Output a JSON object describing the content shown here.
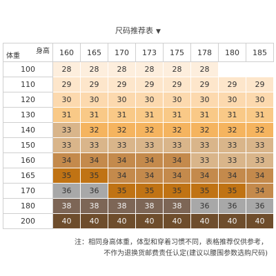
{
  "title": "尺码推荐表",
  "title_arrow": "▼",
  "corner": {
    "height_label": "身高",
    "weight_label": "体重"
  },
  "heights": [
    "160",
    "165",
    "170",
    "173",
    "175",
    "178",
    "180",
    "185"
  ],
  "rows": [
    {
      "weight": "100",
      "cells": [
        "28",
        "28",
        "28",
        "28",
        "28",
        "28",
        "",
        ""
      ]
    },
    {
      "weight": "110",
      "cells": [
        "29",
        "29",
        "29",
        "29",
        "29",
        "29",
        "29",
        "29"
      ]
    },
    {
      "weight": "120",
      "cells": [
        "30",
        "30",
        "30",
        "30",
        "30",
        "30",
        "30",
        "30"
      ]
    },
    {
      "weight": "130",
      "cells": [
        "31",
        "31",
        "31",
        "31",
        "31",
        "31",
        "31",
        "31"
      ]
    },
    {
      "weight": "140",
      "cells": [
        "33",
        "32",
        "32",
        "32",
        "32",
        "32",
        "32",
        "32"
      ]
    },
    {
      "weight": "150",
      "cells": [
        "33",
        "33",
        "33",
        "33",
        "33",
        "33",
        "33",
        "33"
      ]
    },
    {
      "weight": "160",
      "cells": [
        "34",
        "34",
        "34",
        "34",
        "34",
        "33",
        "33",
        "33"
      ]
    },
    {
      "weight": "165",
      "cells": [
        "35",
        "35",
        "34",
        "34",
        "34",
        "34",
        "34",
        "34"
      ]
    },
    {
      "weight": "170",
      "cells": [
        "36",
        "36",
        "35",
        "35",
        "35",
        "35",
        "35",
        "34"
      ]
    },
    {
      "weight": "180",
      "cells": [
        "38",
        "38",
        "38",
        "38",
        "38",
        "36",
        "36",
        "36"
      ]
    },
    {
      "weight": "200",
      "cells": [
        "40",
        "40",
        "40",
        "40",
        "40",
        "40",
        "40",
        "40"
      ]
    }
  ],
  "size_colors": {
    "28": "#fdeedd",
    "29": "#fde6cb",
    "30": "#fcd9ae",
    "31": "#f9c987",
    "32": "#f5b45f",
    "33": "#d9b58a",
    "34": "#c48a4c",
    "35": "#c07314",
    "36": "#a8a8a8",
    "38": "#7d6656",
    "40": "#6e4d2c"
  },
  "note": {
    "line1": "注：相同身高体重，体型和穿着习惯不同，表格推荐仅供参考，",
    "line2": "不作为退换货邮费责任认定(建议以腰围参数选购尺码)"
  }
}
